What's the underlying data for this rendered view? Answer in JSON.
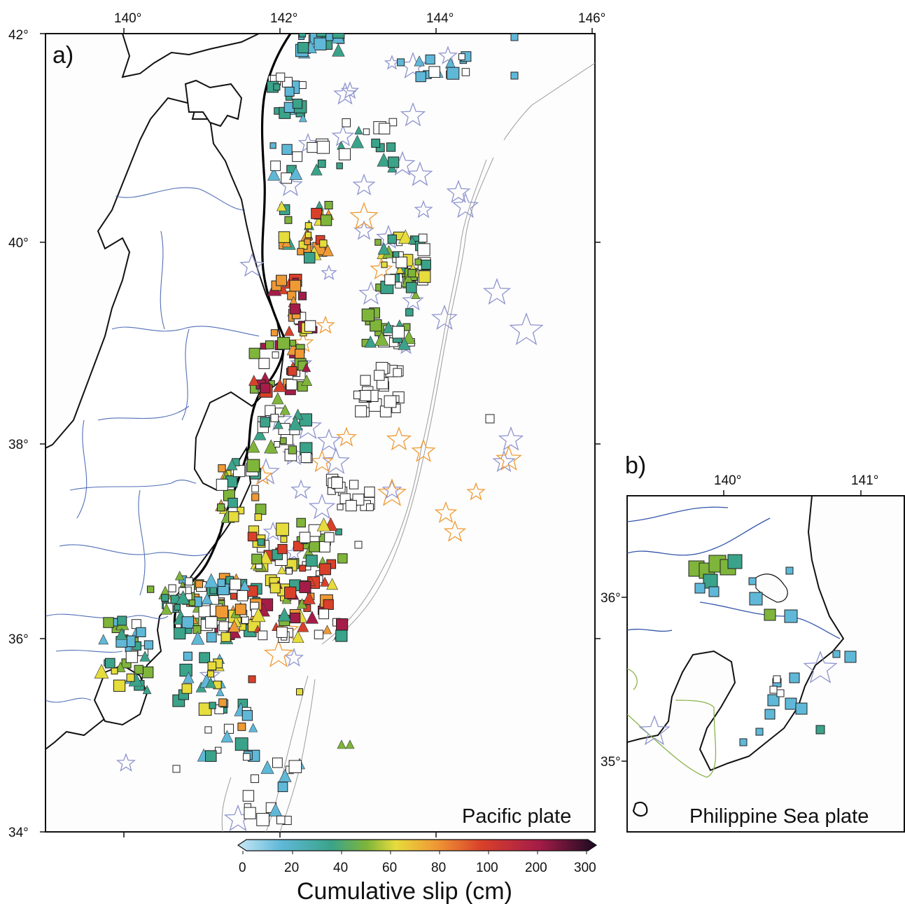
{
  "panel_a": {
    "label": "a)",
    "plate_label": "Pacific plate",
    "lon_ticks": [
      "140°",
      "142°",
      "144°",
      "146°"
    ],
    "lat_ticks": [
      "42°",
      "40°",
      "38°",
      "36°",
      "34°"
    ]
  },
  "panel_b": {
    "label": "b)",
    "plate_label": "Philippine Sea plate",
    "lon_ticks": [
      "140°",
      "141°"
    ],
    "lat_ticks": [
      "36°",
      "35°"
    ]
  },
  "colorbar": {
    "title": "Cumulative slip (cm)",
    "tick_labels": [
      "0",
      "20",
      "40",
      "60",
      "80",
      "100",
      "200",
      "300"
    ],
    "colors": [
      "#b8def2",
      "#5fb8d8",
      "#3aa38a",
      "#7fb53a",
      "#e6dc3c",
      "#ef9a35",
      "#d9402a",
      "#a51c48",
      "#2a0a2e"
    ]
  },
  "colors": {
    "coast": "#111111",
    "prefecture_borders": "#3355aa",
    "bathymetry": "#999999",
    "stars_small_event": "#8f94cf",
    "stars_large_event": "#ef9a35",
    "trench": "#000000"
  }
}
